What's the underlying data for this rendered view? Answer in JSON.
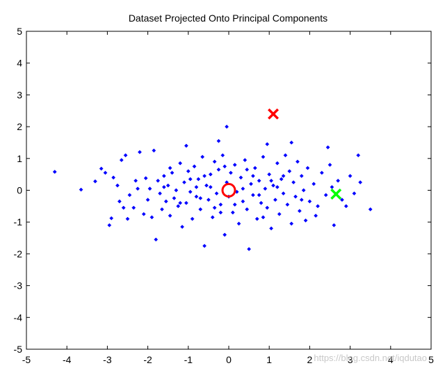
{
  "chart_data": {
    "type": "scatter",
    "title": "Dataset Projected Onto Principal Components",
    "xlabel": "",
    "ylabel": "",
    "xlim": [
      -5,
      5
    ],
    "ylim": [
      -5,
      5
    ],
    "xticks": [
      "-5",
      "-4",
      "-3",
      "-2",
      "-1",
      "0",
      "1",
      "2",
      "3",
      "4",
      "5"
    ],
    "yticks": [
      "5",
      "4",
      "3",
      "2",
      "1",
      "0",
      "-1",
      "-2",
      "-3",
      "-4",
      "-5"
    ],
    "grid": false,
    "legend": "none",
    "series": [
      {
        "marker": "diamond",
        "color": "#0000ff",
        "points": [
          [
            -4.3,
            0.58
          ],
          [
            -3.65,
            0.02
          ],
          [
            -3.3,
            0.28
          ],
          [
            -3.15,
            0.68
          ],
          [
            -3.05,
            0.55
          ],
          [
            -2.95,
            -1.1
          ],
          [
            -2.9,
            -0.88
          ],
          [
            -2.85,
            0.4
          ],
          [
            -2.75,
            0.15
          ],
          [
            -2.7,
            -0.35
          ],
          [
            -2.65,
            0.95
          ],
          [
            -2.55,
            1.1
          ],
          [
            -2.5,
            -0.9
          ],
          [
            -2.45,
            -0.15
          ],
          [
            -2.35,
            -0.55
          ],
          [
            -2.25,
            0.05
          ],
          [
            -2.2,
            1.2
          ],
          [
            -2.1,
            -0.75
          ],
          [
            -2.05,
            0.38
          ],
          [
            -2.0,
            -0.3
          ],
          [
            -1.95,
            0.05
          ],
          [
            -1.9,
            -0.85
          ],
          [
            -1.85,
            1.25
          ],
          [
            -1.8,
            -1.55
          ],
          [
            -1.75,
            0.3
          ],
          [
            -1.7,
            -0.1
          ],
          [
            -1.65,
            -0.6
          ],
          [
            -1.6,
            0.45
          ],
          [
            -1.55,
            -0.35
          ],
          [
            -1.5,
            0.15
          ],
          [
            -1.45,
            -0.8
          ],
          [
            -1.4,
            0.55
          ],
          [
            -1.35,
            -0.25
          ],
          [
            -1.3,
            0.0
          ],
          [
            -1.25,
            -0.5
          ],
          [
            -1.2,
            0.85
          ],
          [
            -1.15,
            -1.15
          ],
          [
            -1.1,
            0.25
          ],
          [
            -1.05,
            -0.4
          ],
          [
            -1.0,
            0.6
          ],
          [
            -0.95,
            -0.05
          ],
          [
            -0.9,
            -0.9
          ],
          [
            -0.85,
            0.75
          ],
          [
            -0.8,
            -0.2
          ],
          [
            -0.75,
            0.35
          ],
          [
            -0.7,
            -0.6
          ],
          [
            -0.65,
            1.05
          ],
          [
            -0.6,
            -1.75
          ],
          [
            -0.55,
            0.15
          ],
          [
            -0.5,
            -0.3
          ],
          [
            -0.45,
            0.5
          ],
          [
            -0.4,
            -0.85
          ],
          [
            -0.35,
            0.9
          ],
          [
            -0.3,
            -0.1
          ],
          [
            -0.25,
            0.65
          ],
          [
            -0.2,
            -0.45
          ],
          [
            -0.15,
            1.1
          ],
          [
            -0.1,
            -1.4
          ],
          [
            -0.05,
            0.25
          ],
          [
            0.0,
            -0.2
          ],
          [
            0.05,
            0.55
          ],
          [
            0.1,
            -0.7
          ],
          [
            0.15,
            0.8
          ],
          [
            0.2,
            -0.05
          ],
          [
            0.25,
            -1.05
          ],
          [
            0.3,
            0.4
          ],
          [
            0.35,
            -0.35
          ],
          [
            0.4,
            0.95
          ],
          [
            0.45,
            -0.6
          ],
          [
            0.5,
            -1.85
          ],
          [
            0.55,
            0.2
          ],
          [
            0.6,
            -0.15
          ],
          [
            0.65,
            0.7
          ],
          [
            0.7,
            -0.9
          ],
          [
            0.75,
            0.3
          ],
          [
            0.8,
            -0.4
          ],
          [
            0.85,
            1.05
          ],
          [
            0.9,
            0.05
          ],
          [
            0.95,
            -0.55
          ],
          [
            1.0,
            0.5
          ],
          [
            1.05,
            -1.2
          ],
          [
            1.1,
            0.15
          ],
          [
            1.15,
            -0.3
          ],
          [
            1.2,
            0.85
          ],
          [
            1.25,
            -0.75
          ],
          [
            1.3,
            0.35
          ],
          [
            1.35,
            -0.1
          ],
          [
            1.4,
            1.1
          ],
          [
            1.45,
            -0.45
          ],
          [
            1.5,
            0.6
          ],
          [
            1.55,
            -1.05
          ],
          [
            1.6,
            0.25
          ],
          [
            1.65,
            -0.2
          ],
          [
            1.7,
            0.9
          ],
          [
            1.75,
            -0.65
          ],
          [
            1.8,
            0.45
          ],
          [
            1.85,
            0.0
          ],
          [
            1.9,
            -0.95
          ],
          [
            1.95,
            0.7
          ],
          [
            2.0,
            -0.35
          ],
          [
            2.1,
            0.2
          ],
          [
            2.2,
            -0.5
          ],
          [
            2.3,
            0.55
          ],
          [
            2.4,
            -0.15
          ],
          [
            2.5,
            0.8
          ],
          [
            2.6,
            -1.1
          ],
          [
            2.7,
            0.3
          ],
          [
            2.8,
            -0.3
          ],
          [
            2.9,
            -0.5
          ],
          [
            3.0,
            0.45
          ],
          [
            3.1,
            -0.1
          ],
          [
            3.2,
            1.1
          ],
          [
            3.25,
            0.25
          ],
          [
            3.5,
            -0.6
          ],
          [
            2.45,
            1.35
          ],
          [
            1.55,
            1.5
          ],
          [
            0.95,
            1.45
          ],
          [
            -0.25,
            1.55
          ],
          [
            -0.05,
            2.0
          ],
          [
            -1.05,
            1.4
          ],
          [
            -0.45,
            0.1
          ],
          [
            0.35,
            0.05
          ],
          [
            -0.8,
            0.1
          ],
          [
            0.75,
            -0.15
          ],
          [
            -1.6,
            0.1
          ],
          [
            1.2,
            0.1
          ],
          [
            -0.2,
            -0.7
          ],
          [
            0.6,
            0.45
          ],
          [
            -0.6,
            0.45
          ],
          [
            0.15,
            -0.45
          ],
          [
            -1.2,
            -0.4
          ],
          [
            1.8,
            -0.3
          ],
          [
            -2.3,
            0.3
          ],
          [
            2.15,
            -0.8
          ],
          [
            -0.95,
            0.35
          ],
          [
            0.45,
            0.65
          ],
          [
            -0.35,
            -0.55
          ],
          [
            1.35,
            0.45
          ],
          [
            -1.45,
            0.7
          ],
          [
            0.85,
            -0.85
          ],
          [
            -0.1,
            0.75
          ],
          [
            2.55,
            0.1
          ],
          [
            -2.6,
            -0.55
          ],
          [
            1.05,
            0.3
          ],
          [
            -0.7,
            -0.25
          ]
        ]
      }
    ],
    "markers": [
      {
        "type": "circle",
        "color": "#ff0000",
        "x": 0.0,
        "y": 0.0
      },
      {
        "type": "cross",
        "color": "#ff0000",
        "x": 1.1,
        "y": 2.4
      },
      {
        "type": "cross",
        "color": "#00ff00",
        "x": 2.65,
        "y": -0.12
      }
    ],
    "watermark": "https://blog.csdn.net/iqdutao"
  }
}
